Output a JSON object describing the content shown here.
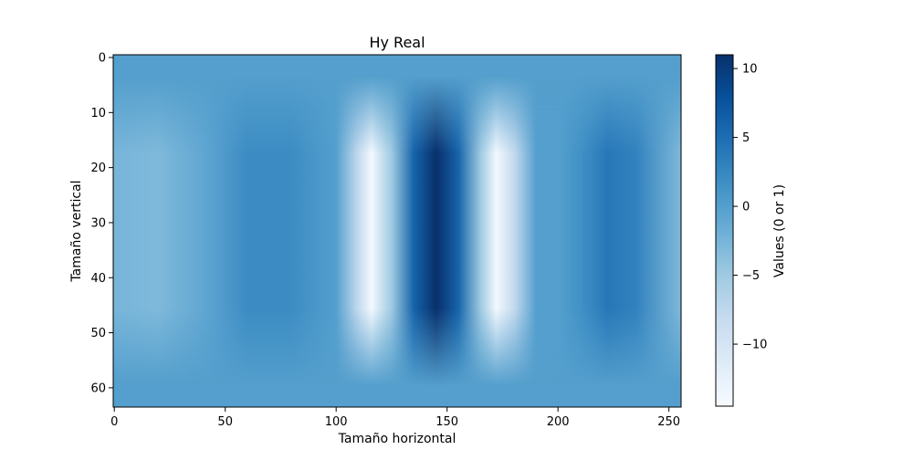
{
  "chart_data": {
    "type": "heatmap",
    "title": "Hy Real",
    "xlabel": "Tamaño horizontal",
    "ylabel": "Tamaño vertical",
    "colorbar_label": "Values (0 or 1)",
    "colormap": "Blues",
    "colormap_direction": "low values light, high values dark",
    "x_range": [
      0,
      255
    ],
    "y_range": [
      0,
      63
    ],
    "y_axis_inverted": true,
    "xticks": [
      0,
      50,
      100,
      150,
      200,
      250
    ],
    "yticks": [
      0,
      10,
      20,
      30,
      40,
      50,
      60
    ],
    "color_range": [
      -14.5,
      11
    ],
    "colorbar_ticks": [
      -10,
      -5,
      0,
      5,
      10
    ],
    "colorbar_tick_labels": [
      "−10",
      "−5",
      "0",
      "5",
      "10"
    ],
    "grid": false,
    "value_profile": {
      "description": "approximate horizontal value profile along rows 25–35; values fade toward the background near rows 5 and 58",
      "x": [
        0,
        20,
        40,
        60,
        80,
        100,
        110,
        116,
        125,
        135,
        145,
        155,
        165,
        172,
        180,
        190,
        200,
        210,
        222,
        235,
        255
      ],
      "values": [
        -2.5,
        -3,
        -1,
        2,
        2,
        0,
        -8,
        -14,
        -5,
        6,
        11,
        6,
        -5,
        -14,
        -8,
        0,
        0,
        1.5,
        4,
        3,
        -3
      ]
    }
  }
}
